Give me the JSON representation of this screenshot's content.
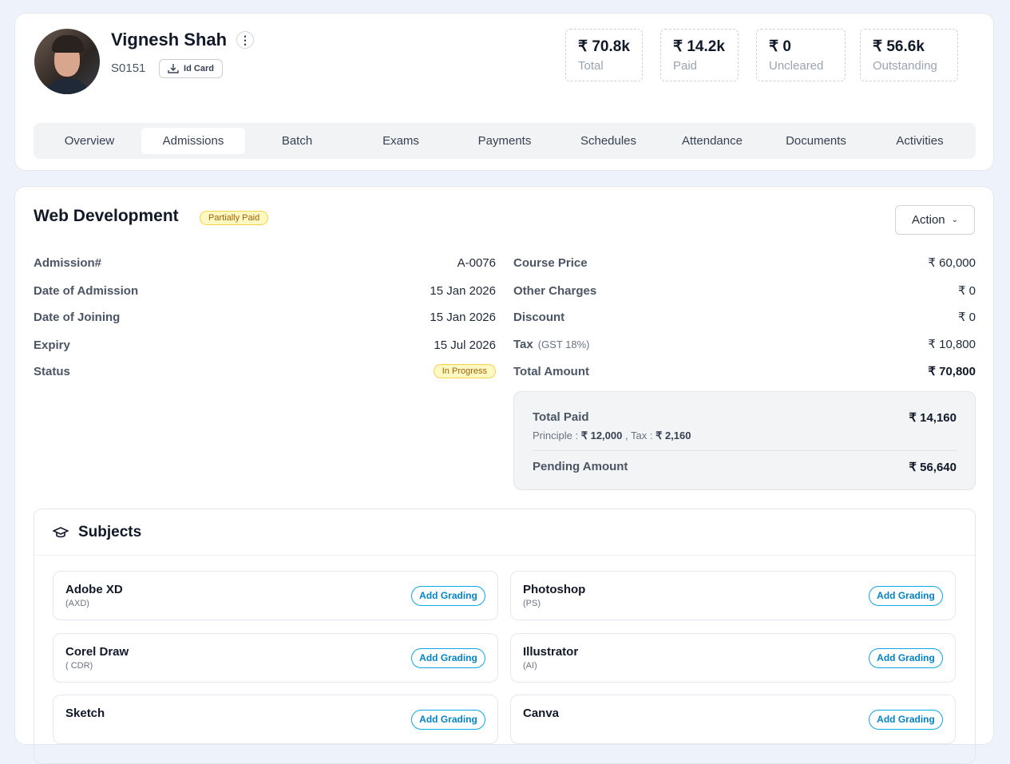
{
  "profile": {
    "name": "Vignesh Shah",
    "id": "S0151",
    "id_card_label": "Id Card"
  },
  "stats": [
    {
      "value": "₹ 70.8k",
      "label": "Total"
    },
    {
      "value": "₹ 14.2k",
      "label": "Paid"
    },
    {
      "value": "₹ 0",
      "label": "Uncleared"
    },
    {
      "value": "₹ 56.6k",
      "label": "Outstanding"
    }
  ],
  "tabs": [
    "Overview",
    "Admissions",
    "Batch",
    "Exams",
    "Payments",
    "Schedules",
    "Attendance",
    "Documents",
    "Activities"
  ],
  "active_tab": "Admissions",
  "admission": {
    "course": "Web Development",
    "payment_status": "Partially Paid",
    "action_label": "Action",
    "details": [
      {
        "label": "Admission#",
        "value": "A-0076"
      },
      {
        "label": "Date of Admission",
        "value": "15 Jan 2026"
      },
      {
        "label": "Date of Joining",
        "value": "15 Jan 2026"
      },
      {
        "label": "Expiry",
        "value": "15 Jul 2026"
      },
      {
        "label": "Status",
        "value": "In Progress"
      }
    ],
    "pricing": [
      {
        "label": "Course Price",
        "value": "₹ 60,000"
      },
      {
        "label": "Other Charges",
        "value": "₹ 0"
      },
      {
        "label": "Discount",
        "value": "₹ 0"
      },
      {
        "label": "Tax",
        "note": "(GST 18%)",
        "value": "₹ 10,800"
      },
      {
        "label": "Total Amount",
        "value": "₹ 70,800"
      }
    ],
    "summary": {
      "total_paid_label": "Total Paid",
      "total_paid": "₹ 14,160",
      "principle_label": "Principle :",
      "principle": "₹ 12,000",
      "tax_label": ", Tax :",
      "tax": "₹ 2,160",
      "pending_label": "Pending Amount",
      "pending": "₹ 56,640"
    }
  },
  "subjects": {
    "title": "Subjects",
    "grading_label": "Add Grading",
    "items": [
      {
        "name": "Adobe XD",
        "code": "(AXD)"
      },
      {
        "name": "Photoshop",
        "code": "(PS)"
      },
      {
        "name": "Corel Draw",
        "code": "( CDR)"
      },
      {
        "name": "Illustrator",
        "code": "(AI)"
      },
      {
        "name": "Sketch",
        "code": ""
      },
      {
        "name": "Canva",
        "code": ""
      }
    ]
  },
  "colors": {
    "background": "#eef3fb",
    "accent": "#0284c7",
    "badge_yellow": "#fef9c3"
  }
}
